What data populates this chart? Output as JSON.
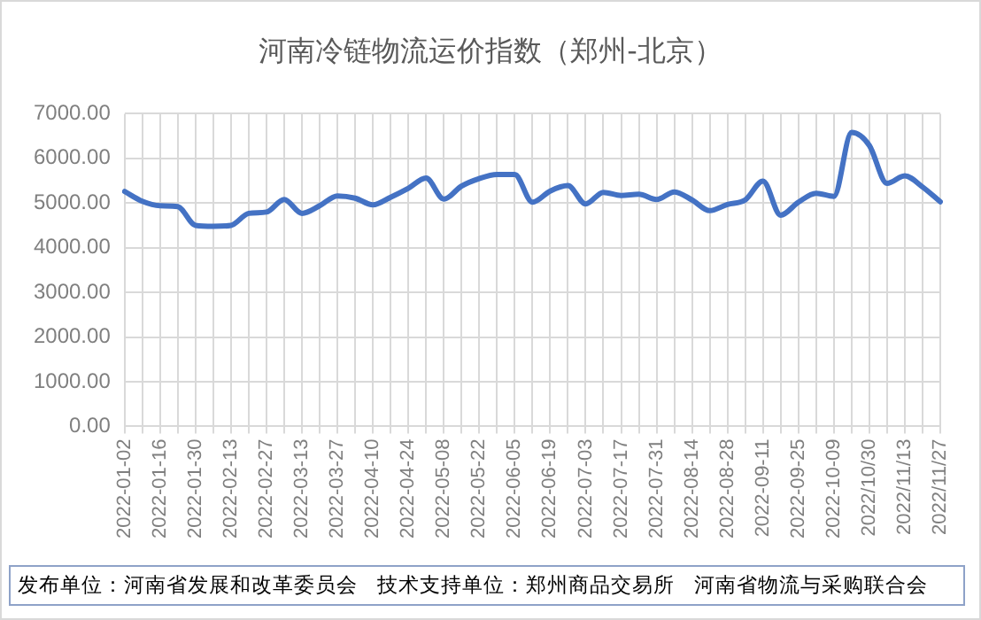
{
  "chart_data": {
    "type": "line",
    "title": "河南冷链物流运价指数（郑州-北京）",
    "categories": [
      "2022-01-02",
      null,
      "2022-01-16",
      null,
      "2022-01-30",
      null,
      "2022-02-13",
      null,
      "2022-02-27",
      null,
      "2022-03-13",
      null,
      "2022-03-27",
      null,
      "2022-04-10",
      null,
      "2022-04-24",
      null,
      "2022-05-08",
      null,
      "2022-05-22",
      null,
      "2022-06-05",
      null,
      "2022-06-19",
      null,
      "2022-07-03",
      null,
      "2022-07-17",
      null,
      "2022-07-31",
      null,
      "2022-08-14",
      null,
      "2022-08-28",
      null,
      "2022-09-11",
      null,
      "2022-09-25",
      null,
      "2022-10-09",
      null,
      "2022/10/30",
      null,
      "2022/11/13",
      null,
      "2022/11/27"
    ],
    "series": [
      {
        "color": "#4472c4",
        "values": [
          5260,
          5040,
          4940,
          4920,
          4500,
          4480,
          4500,
          4770,
          4800,
          5080,
          4770,
          4940,
          5160,
          5110,
          4960,
          5130,
          5330,
          5560,
          5090,
          5380,
          5550,
          5640,
          5640,
          5020,
          5270,
          5390,
          4980,
          5240,
          5170,
          5200,
          5080,
          5250,
          5070,
          4830,
          4970,
          5070,
          5490,
          4730,
          5020,
          5220,
          5150,
          6580,
          6290,
          5440,
          5610,
          5360,
          5030
        ]
      }
    ],
    "ylim": [
      0,
      7000
    ],
    "yticks": [
      {
        "value": 0,
        "label": "0.00"
      },
      {
        "value": 1000,
        "label": "1000.00"
      },
      {
        "value": 2000,
        "label": "2000.00"
      },
      {
        "value": 3000,
        "label": "3000.00"
      },
      {
        "value": 4000,
        "label": "4000.00"
      },
      {
        "value": 5000,
        "label": "5000.00"
      },
      {
        "value": 6000,
        "label": "6000.00"
      },
      {
        "value": 7000,
        "label": "7000.00"
      }
    ],
    "grid": true,
    "legend": false,
    "marker": "none",
    "line_style": "solid",
    "annotations": [
      "发布单位：河南省发展和改革委员会   技术支持单位：郑州商品交易所   河南省物流与采购联合会"
    ]
  }
}
